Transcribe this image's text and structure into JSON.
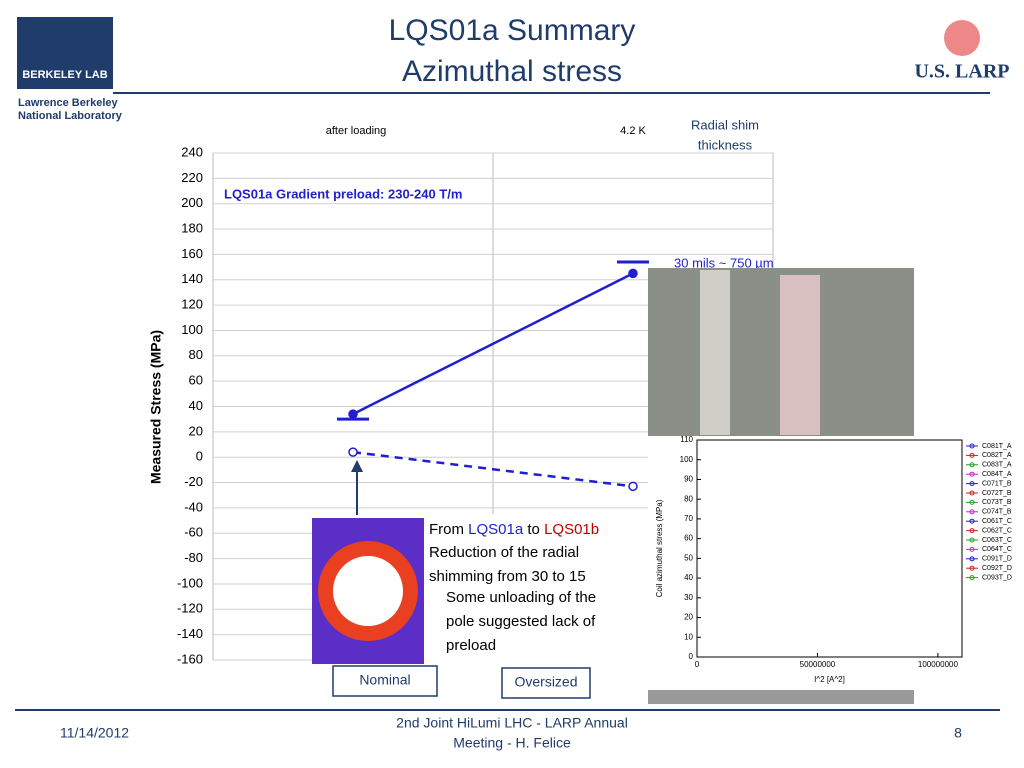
{
  "header": {
    "title": "LQS01a Summary",
    "subtitle": "Azimuthal stress",
    "logo_left": "BERKELEY LAB",
    "lab_name_1": "Lawrence Berkeley",
    "lab_name_2": "National Laboratory",
    "logo_right": "U.S. LARP"
  },
  "chart_data": {
    "type": "line",
    "categories": [
      "after loading",
      "4.2 K"
    ],
    "y_label": "Measured Stress (MPa)",
    "ylim": [
      -160,
      240
    ],
    "yticks": [
      -160,
      -140,
      -120,
      -100,
      -80,
      -60,
      -40,
      -20,
      0,
      20,
      40,
      60,
      80,
      100,
      120,
      140,
      160,
      180,
      200,
      220,
      240
    ],
    "grid": true,
    "series": [
      {
        "color": "#1f1fd0",
        "style": "solid",
        "marker": "filled",
        "values": [
          34,
          145
        ]
      },
      {
        "color": "#1f1fd0",
        "style": "dashed",
        "marker": "open",
        "values": [
          4,
          -23
        ]
      }
    ],
    "shim_markers": {
      "color": "#1f1fd0",
      "values": [
        30,
        154
      ]
    },
    "annotations": {
      "preload": "LQS01a Gradient preload: 230-240 T/m",
      "shim_title_1": "Radial shim",
      "shim_title_2": "thickness",
      "shim_value": "30 mils  ~ 750 µm"
    }
  },
  "inset_chart": {
    "x_label": "I^2 [A^2]",
    "y_label": "Coil azimuthal stress (MPa)",
    "xlim": [
      0,
      110000000
    ],
    "xticks": [
      0,
      50000000,
      100000000
    ],
    "ylim": [
      0,
      110
    ],
    "yticks": [
      0,
      10,
      20,
      30,
      40,
      50,
      60,
      70,
      80,
      90,
      100,
      110
    ],
    "legend": [
      {
        "name": "C081T_A",
        "color": "#2020d0"
      },
      {
        "name": "C082T_A",
        "color": "#d02020"
      },
      {
        "name": "C083T_A",
        "color": "#20a020"
      },
      {
        "name": "C084T_A",
        "color": "#d020d0"
      },
      {
        "name": "C071T_B",
        "color": "#2020d0"
      },
      {
        "name": "C072T_B",
        "color": "#d02020"
      },
      {
        "name": "C073T_B",
        "color": "#20a020"
      },
      {
        "name": "C074T_B",
        "color": "#d020d0"
      },
      {
        "name": "C061T_C",
        "color": "#2020d0"
      },
      {
        "name": "C062T_C",
        "color": "#d02020"
      },
      {
        "name": "C063T_C",
        "color": "#20a020"
      },
      {
        "name": "C064T_C",
        "color": "#d020d0"
      },
      {
        "name": "C091T_D",
        "color": "#2020d0"
      },
      {
        "name": "C092T_D",
        "color": "#d02020"
      },
      {
        "name": "C093T_D",
        "color": "#20a020"
      }
    ]
  },
  "textbox": {
    "from": "From",
    "a": "LQS01a",
    "to": "to",
    "b": "LQS01b",
    "line2": "Reduction of the radial",
    "line3": "shimming from 30 to 15"
  },
  "callout": {
    "line1": "Some unloading of the",
    "line2": "pole suggested lack of",
    "line3": "preload"
  },
  "buttons": {
    "nominal": "Nominal",
    "oversized": "Oversized"
  },
  "footer": {
    "date": "11/14/2012",
    "meeting_1": "2nd Joint HiLumi LHC - LARP Annual",
    "meeting_2": "Meeting - H. Felice",
    "page": "8"
  }
}
